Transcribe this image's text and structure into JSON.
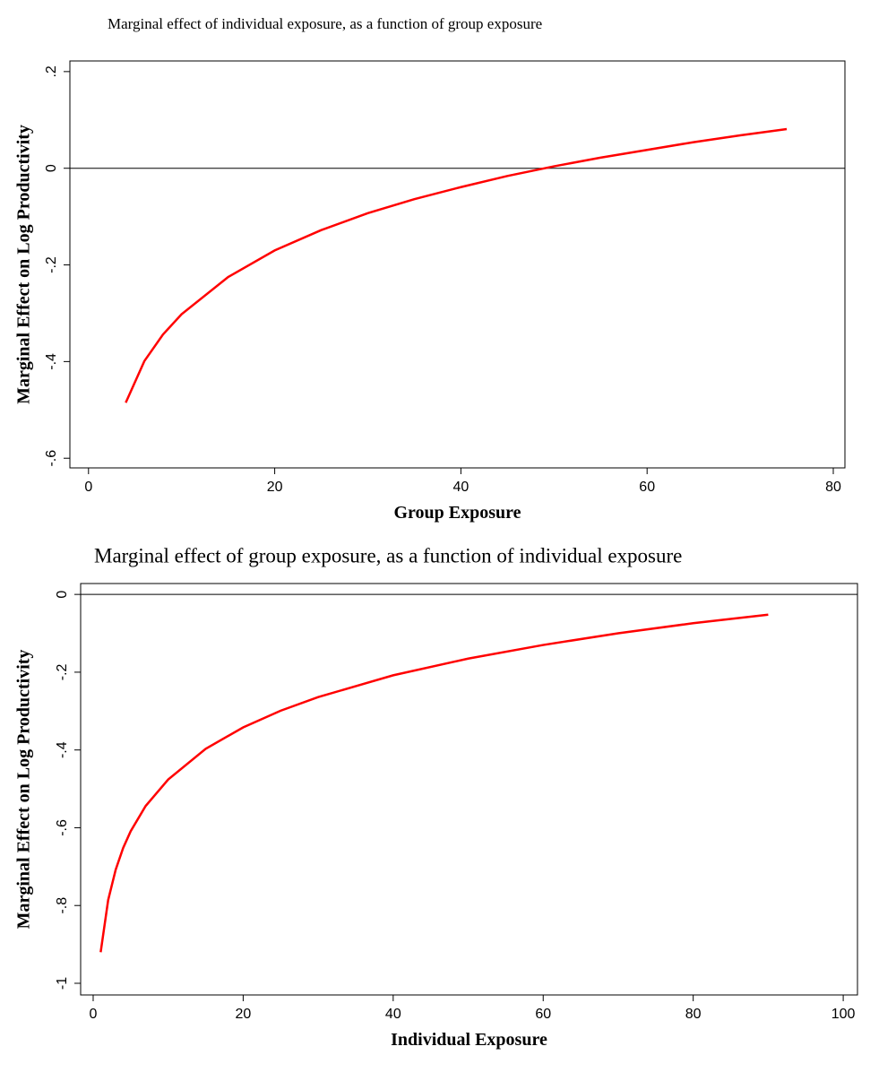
{
  "chart_data": [
    {
      "type": "line",
      "title": "Marginal effect of individual exposure, as a function of group exposure",
      "x_label": "Group Exposure",
      "y_label": "Marginal Effect on Log Productivity",
      "x": [
        4,
        6,
        8,
        10,
        15,
        20,
        25,
        30,
        35,
        40,
        45,
        50,
        55,
        60,
        65,
        70,
        75
      ],
      "series": [
        {
          "color": "#ff0000",
          "values": [
            -0.485,
            -0.399,
            -0.344,
            -0.302,
            -0.225,
            -0.17,
            -0.128,
            -0.093,
            -0.064,
            -0.039,
            -0.016,
            0.004,
            0.022,
            0.038,
            0.054,
            0.068,
            0.081
          ]
        }
      ],
      "xlim": [
        -2,
        81.25
      ],
      "xticks": [
        0,
        20,
        40,
        60,
        80
      ],
      "ylim": [
        -0.62,
        0.222
      ],
      "yticks": [
        {
          "value": 0.2,
          "label": ".2"
        },
        0,
        {
          "value": -0.2,
          "label": "-.2"
        },
        {
          "value": -0.4,
          "label": "-.4"
        },
        {
          "value": -0.6,
          "label": "-.6"
        }
      ],
      "reference_line": 0
    },
    {
      "type": "line",
      "title": "Marginal effect of group exposure, as a function of individual exposure",
      "x_label": "Individual Exposure",
      "y_label": "Marginal Effect on Log Productivity",
      "x": [
        1,
        2,
        3,
        4,
        5,
        7,
        10,
        15,
        20,
        25,
        30,
        40,
        50,
        60,
        70,
        80,
        90
      ],
      "series": [
        {
          "color": "#ff0000",
          "values": [
            -0.92,
            -0.786,
            -0.708,
            -0.652,
            -0.609,
            -0.544,
            -0.476,
            -0.397,
            -0.342,
            -0.299,
            -0.264,
            -0.208,
            -0.165,
            -0.13,
            -0.1,
            -0.074,
            -0.052
          ]
        }
      ],
      "xlim": [
        -1.67,
        101.9
      ],
      "xticks": [
        0,
        20,
        40,
        60,
        80,
        100
      ],
      "ylim": [
        -1.03,
        0.028
      ],
      "yticks": [
        0,
        {
          "value": -0.2,
          "label": "-.2"
        },
        {
          "value": -0.4,
          "label": "-.4"
        },
        {
          "value": -0.6,
          "label": "-.6"
        },
        {
          "value": -0.8,
          "label": "-.8"
        },
        -1
      ],
      "reference_line": 0
    }
  ]
}
